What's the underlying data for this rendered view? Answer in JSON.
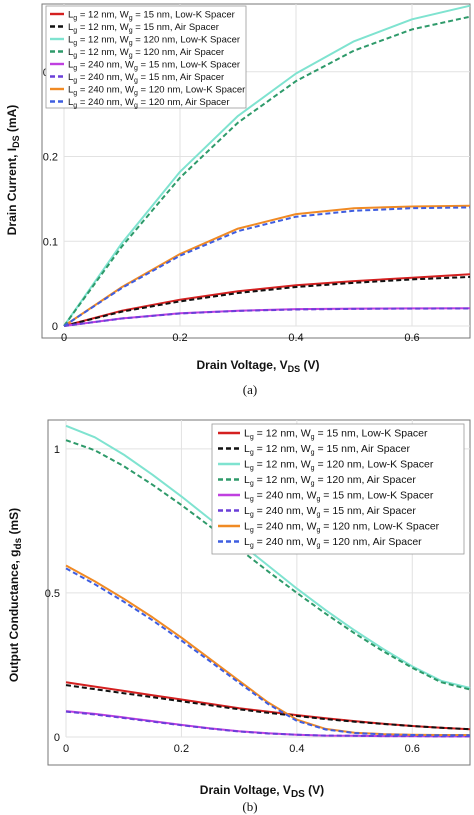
{
  "chart_data": [
    {
      "type": "line",
      "caption": "(a)",
      "xlabel": "Drain Voltage, V",
      "xlabel_sub": "DS",
      "xlabel_unit": " (V)",
      "ylabel": "Drain Current, I",
      "ylabel_sub": "DS",
      "ylabel_unit": " (mA)",
      "xlim": [
        0,
        0.7
      ],
      "ylim": [
        0,
        0.38
      ],
      "xticks": [
        "0",
        "0.2",
        "0.4",
        "0.6"
      ],
      "xtick_values": [
        0,
        0.2,
        0.4,
        0.6
      ],
      "yticks": [
        "0",
        "0.1",
        "0.2",
        "0.3"
      ],
      "ytick_values": [
        0,
        0.1,
        0.2,
        0.3
      ],
      "legend_position": "top-left",
      "x": [
        0,
        0.1,
        0.2,
        0.3,
        0.4,
        0.5,
        0.6,
        0.7
      ],
      "series": [
        {
          "name_pre": "L",
          "name_sub1": "g",
          "name_mid": " = 12 nm, W",
          "name_sub2": "g",
          "name_post": " = 15 nm, Low-K Spacer",
          "color": "#d42020",
          "dash": "",
          "values": [
            0,
            0.018,
            0.031,
            0.041,
            0.048,
            0.053,
            0.057,
            0.061
          ]
        },
        {
          "name_pre": "L",
          "name_sub1": "g",
          "name_mid": " = 12 nm, W",
          "name_sub2": "g",
          "name_post": " = 15 nm, Air Spacer",
          "color": "#111111",
          "dash": "5,3",
          "values": [
            0,
            0.017,
            0.029,
            0.039,
            0.046,
            0.051,
            0.055,
            0.058
          ]
        },
        {
          "name_pre": "L",
          "name_sub1": "g",
          "name_mid": " = 12 nm, W",
          "name_sub2": "g",
          "name_post": " = 120 nm, Low-K Spacer",
          "color": "#7fe3d0",
          "dash": "",
          "values": [
            0,
            0.098,
            0.182,
            0.248,
            0.298,
            0.336,
            0.362,
            0.378
          ]
        },
        {
          "name_pre": "L",
          "name_sub1": "g",
          "name_mid": " = 12 nm, W",
          "name_sub2": "g",
          "name_post": " = 120 nm, Air Spacer",
          "color": "#2e9a6a",
          "dash": "5,3",
          "values": [
            0,
            0.094,
            0.175,
            0.24,
            0.289,
            0.325,
            0.35,
            0.365
          ]
        },
        {
          "name_pre": "L",
          "name_sub1": "g",
          "name_mid": " = 240 nm, W",
          "name_sub2": "g",
          "name_post": " = 15 nm, Low-K Spacer",
          "color": "#c040e0",
          "dash": "",
          "values": [
            0,
            0.009,
            0.015,
            0.018,
            0.02,
            0.0205,
            0.0208,
            0.021
          ]
        },
        {
          "name_pre": "L",
          "name_sub1": "g",
          "name_mid": " = 240 nm, W",
          "name_sub2": "g",
          "name_post": " = 15 nm, Air Spacer",
          "color": "#6a3fd8",
          "dash": "5,3",
          "values": [
            0,
            0.0088,
            0.0148,
            0.0178,
            0.0195,
            0.0202,
            0.0205,
            0.0207
          ]
        },
        {
          "name_pre": "L",
          "name_sub1": "g",
          "name_mid": " = 240 nm, W",
          "name_sub2": "g",
          "name_post": " = 120 nm, Low-K Spacer",
          "color": "#f08a24",
          "dash": "",
          "values": [
            0,
            0.046,
            0.085,
            0.115,
            0.132,
            0.139,
            0.141,
            0.142
          ]
        },
        {
          "name_pre": "L",
          "name_sub1": "g",
          "name_mid": " = 240 nm, W",
          "name_sub2": "g",
          "name_post": " = 120 nm, Air Spacer",
          "color": "#3f5ee0",
          "dash": "5,3",
          "values": [
            0,
            0.045,
            0.083,
            0.112,
            0.129,
            0.136,
            0.139,
            0.14
          ]
        }
      ]
    },
    {
      "type": "line",
      "caption": "(b)",
      "xlabel": "Drain Voltage, V",
      "xlabel_sub": "DS",
      "xlabel_unit": " (V)",
      "ylabel": "Output Conductance, g",
      "ylabel_sub": "ds",
      "ylabel_unit": " (mS)",
      "xlim": [
        0,
        0.7
      ],
      "ylim": [
        0,
        1.1
      ],
      "xticks": [
        "0",
        "0.2",
        "0.4",
        "0.6"
      ],
      "xtick_values": [
        0,
        0.2,
        0.4,
        0.6
      ],
      "yticks": [
        "0",
        "0.5",
        "1"
      ],
      "ytick_values": [
        0,
        0.5,
        1
      ],
      "legend_position": "top-right",
      "x": [
        0,
        0.05,
        0.1,
        0.15,
        0.2,
        0.25,
        0.3,
        0.35,
        0.4,
        0.45,
        0.5,
        0.55,
        0.6,
        0.65,
        0.7
      ],
      "series": [
        {
          "name_pre": "L",
          "name_sub1": "g",
          "name_mid": " = 12 nm, W",
          "name_sub2": "g",
          "name_post": " = 15 nm, Low-K Spacer",
          "color": "#d42020",
          "dash": "",
          "values": [
            0.19,
            0.175,
            0.16,
            0.145,
            0.13,
            0.115,
            0.1,
            0.088,
            0.076,
            0.065,
            0.055,
            0.046,
            0.038,
            0.032,
            0.027
          ]
        },
        {
          "name_pre": "L",
          "name_sub1": "g",
          "name_mid": " = 12 nm, W",
          "name_sub2": "g",
          "name_post": " = 15 nm, Air Spacer",
          "color": "#111111",
          "dash": "5,3",
          "values": [
            0.18,
            0.166,
            0.152,
            0.138,
            0.124,
            0.11,
            0.096,
            0.084,
            0.073,
            0.062,
            0.053,
            0.045,
            0.038,
            0.032,
            0.027
          ]
        },
        {
          "name_pre": "L",
          "name_sub1": "g",
          "name_mid": " = 12 nm, W",
          "name_sub2": "g",
          "name_post": " = 120 nm, Low-K Spacer",
          "color": "#7fe3d0",
          "dash": "",
          "values": [
            1.08,
            1.04,
            0.98,
            0.91,
            0.835,
            0.755,
            0.675,
            0.595,
            0.515,
            0.44,
            0.37,
            0.305,
            0.245,
            0.195,
            0.17
          ]
        },
        {
          "name_pre": "L",
          "name_sub1": "g",
          "name_mid": " = 12 nm, W",
          "name_sub2": "g",
          "name_post": " = 120 nm, Air Spacer",
          "color": "#2e9a6a",
          "dash": "5,3",
          "values": [
            1.03,
            0.995,
            0.94,
            0.875,
            0.805,
            0.73,
            0.653,
            0.575,
            0.5,
            0.428,
            0.36,
            0.297,
            0.24,
            0.19,
            0.165
          ]
        },
        {
          "name_pre": "L",
          "name_sub1": "g",
          "name_mid": " = 240 nm, W",
          "name_sub2": "g",
          "name_post": " = 15 nm, Low-K Spacer",
          "color": "#c040e0",
          "dash": "",
          "values": [
            0.09,
            0.08,
            0.068,
            0.055,
            0.042,
            0.03,
            0.02,
            0.013,
            0.008,
            0.005,
            0.004,
            0.003,
            0.003,
            0.002,
            0.002
          ]
        },
        {
          "name_pre": "L",
          "name_sub1": "g",
          "name_mid": " = 240 nm, W",
          "name_sub2": "g",
          "name_post": " = 15 nm, Air Spacer",
          "color": "#6a3fd8",
          "dash": "5,3",
          "values": [
            0.088,
            0.078,
            0.066,
            0.053,
            0.041,
            0.029,
            0.019,
            0.012,
            0.008,
            0.005,
            0.004,
            0.003,
            0.003,
            0.002,
            0.002
          ]
        },
        {
          "name_pre": "L",
          "name_sub1": "g",
          "name_mid": " = 240 nm, W",
          "name_sub2": "g",
          "name_post": " = 120 nm, Low-K Spacer",
          "color": "#f08a24",
          "dash": "",
          "values": [
            0.595,
            0.54,
            0.48,
            0.415,
            0.345,
            0.27,
            0.195,
            0.12,
            0.06,
            0.028,
            0.015,
            0.01,
            0.008,
            0.007,
            0.007
          ]
        },
        {
          "name_pre": "L",
          "name_sub1": "g",
          "name_mid": " = 240 nm, W",
          "name_sub2": "g",
          "name_post": " = 120 nm, Air Spacer",
          "color": "#3f5ee0",
          "dash": "5,3",
          "values": [
            0.585,
            0.53,
            0.47,
            0.405,
            0.335,
            0.262,
            0.188,
            0.115,
            0.056,
            0.026,
            0.014,
            0.009,
            0.007,
            0.006,
            0.006
          ]
        }
      ]
    }
  ]
}
